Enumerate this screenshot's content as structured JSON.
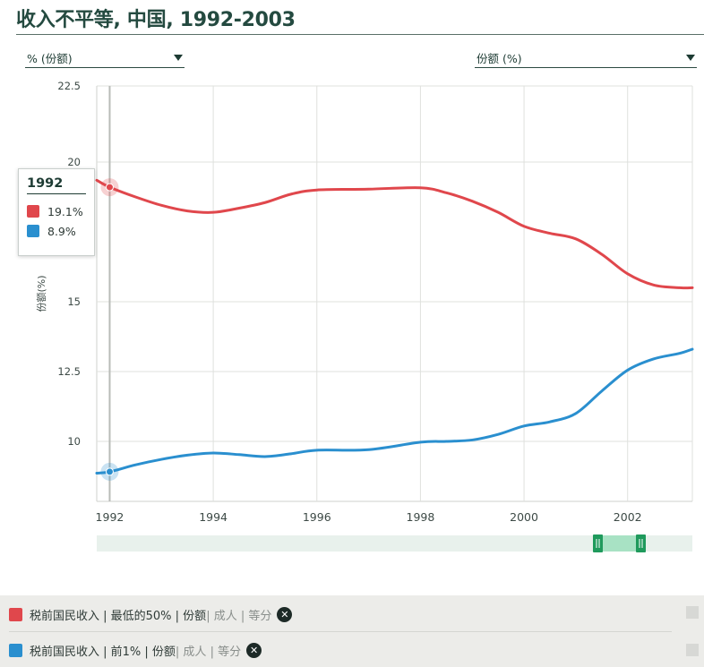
{
  "title": "收入不平等, 中国, 1992-2003",
  "controls": {
    "left_dropdown": "% (份额)",
    "right_dropdown": "份额 (%)"
  },
  "tooltip": {
    "year": "1992",
    "rows": [
      {
        "value": "19.1%",
        "color": "#e0474c"
      },
      {
        "value": "8.9%",
        "color": "#2a8fcf"
      }
    ]
  },
  "legend": [
    {
      "main": "税前国民收入 | 最低的50% | 份额 ",
      "muted": "| 成人 | 等分",
      "color": "#e0474c"
    },
    {
      "main": "税前国民收入 | 前1% | 份额 ",
      "muted": "| 成人 | 等分",
      "color": "#2a8fcf"
    }
  ],
  "chart_data": {
    "type": "line",
    "title": "收入不平等, 中国, 1992-2003",
    "xlabel": "",
    "ylabel": "份额(%)",
    "xlim": [
      1991.75,
      2003.25
    ],
    "ylim": [
      8.8,
      22.5
    ],
    "y_ticks": [
      10,
      12.5,
      15,
      20,
      22.5
    ],
    "x_ticks": [
      1992,
      1994,
      1996,
      1998,
      2000,
      2002
    ],
    "grid": true,
    "series": [
      {
        "color": "#e0474c",
        "points": [
          [
            1991.75,
            19.35
          ],
          [
            1992,
            19.1
          ],
          [
            1992.5,
            18.75
          ],
          [
            1993,
            18.45
          ],
          [
            1993.5,
            18.25
          ],
          [
            1994,
            18.2
          ],
          [
            1994.5,
            18.35
          ],
          [
            1995,
            18.55
          ],
          [
            1995.5,
            18.85
          ],
          [
            1996,
            19.0
          ],
          [
            1997,
            19.03
          ],
          [
            1998,
            19.08
          ],
          [
            1998.5,
            18.9
          ],
          [
            1999,
            18.6
          ],
          [
            1999.5,
            18.2
          ],
          [
            2000,
            17.7
          ],
          [
            2000.5,
            17.45
          ],
          [
            2001,
            17.25
          ],
          [
            2001.5,
            16.7
          ],
          [
            2002,
            16.0
          ],
          [
            2002.5,
            15.6
          ],
          [
            2003,
            15.5
          ],
          [
            2003.25,
            15.5
          ]
        ]
      },
      {
        "color": "#2a8fcf",
        "points": [
          [
            1991.75,
            8.85
          ],
          [
            1992,
            8.9
          ],
          [
            1992.5,
            9.15
          ],
          [
            1993,
            9.35
          ],
          [
            1993.5,
            9.5
          ],
          [
            1994,
            9.58
          ],
          [
            1994.5,
            9.52
          ],
          [
            1995,
            9.45
          ],
          [
            1995.5,
            9.55
          ],
          [
            1996,
            9.68
          ],
          [
            1997,
            9.7
          ],
          [
            1998,
            9.97
          ],
          [
            1998.5,
            10.0
          ],
          [
            1999,
            10.05
          ],
          [
            1999.5,
            10.25
          ],
          [
            2000,
            10.55
          ],
          [
            2000.5,
            10.7
          ],
          [
            2001,
            11.0
          ],
          [
            2001.5,
            11.8
          ],
          [
            2002,
            12.55
          ],
          [
            2002.5,
            12.95
          ],
          [
            2003,
            13.15
          ],
          [
            2003.25,
            13.3
          ]
        ]
      }
    ],
    "hover_x": 1992
  }
}
